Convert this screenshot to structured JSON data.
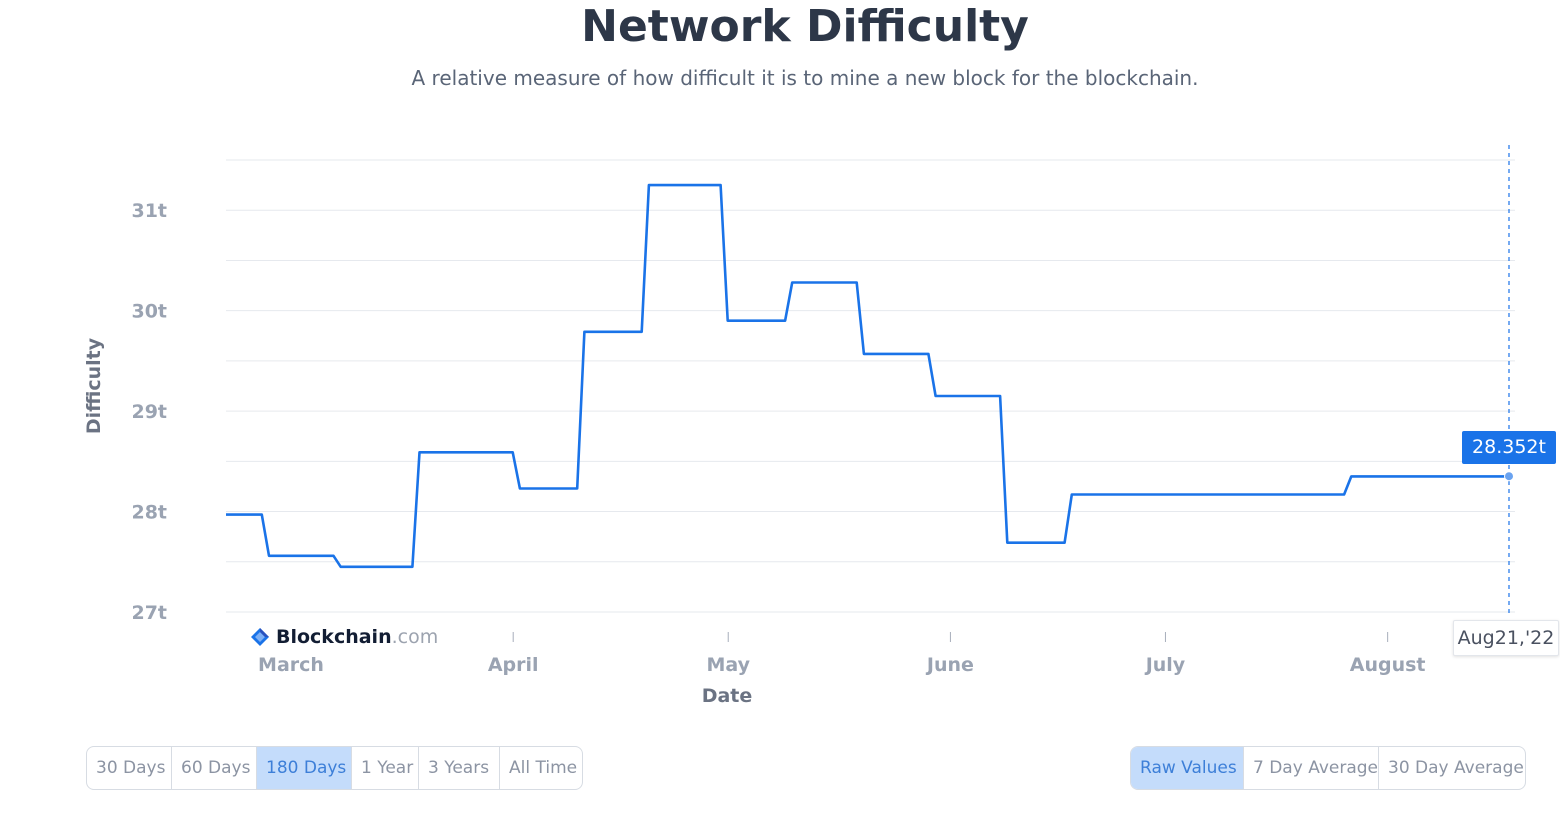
{
  "header": {
    "title": "Network Difficulty",
    "subtitle": "A relative measure of how difficult it is to mine a new block for the blockchain."
  },
  "watermark": {
    "brand": "Blockchain",
    "domain": ".com"
  },
  "tooltip": {
    "value": "28.352t",
    "date": "Aug21,'22"
  },
  "range_buttons": [
    {
      "label": "30 Days",
      "active": false
    },
    {
      "label": "60 Days",
      "active": false
    },
    {
      "label": "180 Days",
      "active": true
    },
    {
      "label": "1 Year",
      "active": false
    },
    {
      "label": "3 Years",
      "active": false
    },
    {
      "label": "All Time",
      "active": false
    }
  ],
  "value_buttons": [
    {
      "label": "Raw Values",
      "active": true
    },
    {
      "label": "7 Day Average",
      "active": false
    },
    {
      "label": "30 Day Average",
      "active": false
    }
  ],
  "colors": {
    "line": "#1a73e8",
    "accent": "#1a73e8",
    "active_button_bg": "#c4dcfb"
  },
  "chart_data": {
    "type": "line",
    "title": "Network Difficulty",
    "subtitle": "A relative measure of how difficult it is to mine a new block for the blockchain.",
    "xlabel": "Date",
    "ylabel": "Difficulty",
    "x_tick_labels": [
      "March",
      "April",
      "May",
      "June",
      "July",
      "August"
    ],
    "y_ticks": [
      {
        "value": 27,
        "label": "27t"
      },
      {
        "value": 28,
        "label": "28t"
      },
      {
        "value": 29,
        "label": "29t"
      },
      {
        "value": 30,
        "label": "30t"
      },
      {
        "value": 31,
        "label": "31t"
      }
    ],
    "ylim": [
      27,
      31.5
    ],
    "xlim": [
      "2022-02-23",
      "2022-08-21"
    ],
    "grid": true,
    "series": [
      {
        "points": [
          [
            "2022-02-23",
            27.97
          ],
          [
            "2022-02-28",
            27.97
          ],
          [
            "2022-03-01",
            27.56
          ],
          [
            "2022-03-10",
            27.56
          ],
          [
            "2022-03-11",
            27.45
          ],
          [
            "2022-03-21",
            27.45
          ],
          [
            "2022-03-22",
            28.59
          ],
          [
            "2022-04-04",
            28.59
          ],
          [
            "2022-04-05",
            28.23
          ],
          [
            "2022-04-13",
            28.23
          ],
          [
            "2022-04-14",
            29.79
          ],
          [
            "2022-04-22",
            29.79
          ],
          [
            "2022-04-23",
            31.25
          ],
          [
            "2022-05-03",
            31.25
          ],
          [
            "2022-05-04",
            29.9
          ],
          [
            "2022-05-12",
            29.9
          ],
          [
            "2022-05-13",
            30.28
          ],
          [
            "2022-05-22",
            30.28
          ],
          [
            "2022-05-23",
            29.57
          ],
          [
            "2022-06-01",
            29.57
          ],
          [
            "2022-06-02",
            29.15
          ],
          [
            "2022-06-11",
            29.15
          ],
          [
            "2022-06-12",
            27.69
          ],
          [
            "2022-06-20",
            27.69
          ],
          [
            "2022-06-21",
            28.17
          ],
          [
            "2022-07-29",
            28.17
          ],
          [
            "2022-07-30",
            28.35
          ],
          [
            "2022-08-21",
            28.35
          ]
        ]
      }
    ],
    "highlight_point": {
      "date": "2022-08-21",
      "value": 28.352,
      "label": "28.352t",
      "date_label": "Aug21,'22"
    }
  }
}
